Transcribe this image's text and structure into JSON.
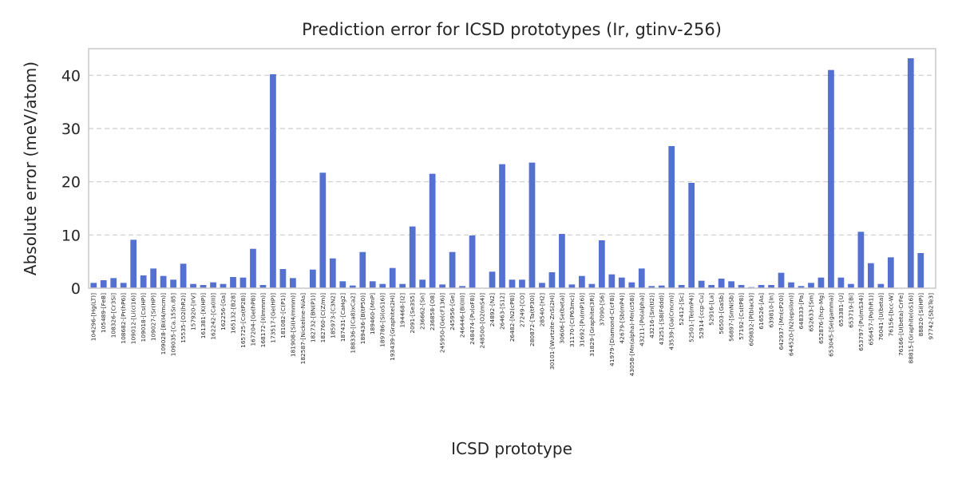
{
  "chart_data": {
    "type": "bar",
    "title": "Prediction error for ICSD prototypes (Ir, gtinv-256)",
    "xlabel": "ICSD prototype",
    "ylabel": "Absolute error (meV/atom)",
    "ylim": [
      0,
      45
    ],
    "yticks": [
      0,
      10,
      20,
      30,
      40
    ],
    "grid": "y-dashed",
    "bar_color": "#5470d0",
    "categories": [
      "104296-[Hg(LT)]",
      "105489-[FeB]",
      "108326-[Cr3Si]",
      "108682-[Pr(hP6)]",
      "109012-[Li(cI16)]",
      "109018-[Cs(HP)]",
      "109027-[Sr(HP)]",
      "109028-[Bi(I4/mcm)]",
      "109035-[Ca.15Sn.85]",
      "15535-[O2(hR2)]",
      "157920-[IrV]",
      "161381-[K(HP)]",
      "162242-[Ca(III)]",
      "162256-[Ga]",
      "165132-[B28]",
      "165725-[Co(tP28)]",
      "167204-[Ge(hP8)]",
      "168172-[I(Immm)]",
      "173517-[Ge(HP)]",
      "181082-[C(P1)]",
      "181908-[Si(I4/mmm)]",
      "182587-[Nickeline-NiAs]",
      "182732-[BN(P1)]",
      "182760-[C(Z/m)]",
      "185973-[C3N2]",
      "187431-[CaHg2]",
      "188336-[(Ca8)xCa2]",
      "189436-[B(tP50)]",
      "189460-[MnP]",
      "189786-[Si(oS16)]",
      "193439-[Graphite(2H)]",
      "194468-[I2]",
      "2091-[Se3S5]",
      "236662-[Sn]",
      "236858-[O8]",
      "245950-[Ge(cF136)]",
      "245956-[Ge]",
      "246446-[Bi(III)]",
      "248474-[Pu(oF8)]",
      "248500-[O2(mS4)]",
      "24892-[N2]",
      "26463-[S12]",
      "26482-[N2(cP8)]",
      "27249-[CO]",
      "280872-[Ta(tP30)]",
      "28540-[H2]",
      "30101-[Wurtzite-ZnS(2H)]",
      "30606-[Se(beta)]",
      "31170-[C(P63mc)]",
      "31692-[Pu(mP16)]",
      "31829-[Graphite(3R)]",
      "37090-[S6]",
      "41979-[Diamond-C(cF8)]",
      "42679-[Sb(mP4)]",
      "43058-[Mn(alpha)-Mn(cI58)]",
      "43211-[Po(alpha)]",
      "43216-[Sn(tI2)]",
      "43251-[S8(Fddd)]",
      "43539-[Ga(Cmcm)]",
      "52412-[Sc]",
      "52501-[Te(mP4)]",
      "52914-[ccp-Cu]",
      "52916-[La]",
      "56503-[GaSb]",
      "56897-[SmNiSb]",
      "57192-[Cs(tP8)]",
      "609832-[P(black)]",
      "616526-[As]",
      "639810-[In]",
      "642937-[Mn(cP20)]",
      "644520-[N2(epsilon)]",
      "648333-[Pa]",
      "652633-[Sm]",
      "652876-[hcp-Mg]",
      "653045-[Se(gamma)]",
      "653381-[U]",
      "653719-[Bi]",
      "653797-[Pu(mS34)]",
      "656457-[Po(hR1)]",
      "76041-[U(beta)]",
      "76156-[bcc-W]",
      "76166-[U(beta)-CrFe]",
      "88815-[Graphite(oS16)]",
      "88820-[Si(HP)]",
      "97742-[Sb2Te3]"
    ],
    "values": [
      1.0,
      1.5,
      1.9,
      1.0,
      9.1,
      2.4,
      3.7,
      2.3,
      1.6,
      4.6,
      0.8,
      0.6,
      1.1,
      0.8,
      2.1,
      2.0,
      7.4,
      0.6,
      40.2,
      3.6,
      1.9,
      0.0,
      3.5,
      21.7,
      5.6,
      1.3,
      0.5,
      6.8,
      1.3,
      0.8,
      3.8,
      0.8,
      11.6,
      1.6,
      21.5,
      0.7,
      6.8,
      0.4,
      9.9,
      0.0,
      3.1,
      23.3,
      1.6,
      1.6,
      23.6,
      1.0,
      3.0,
      10.2,
      0.7,
      2.3,
      0.8,
      9.0,
      2.6,
      2.0,
      1.1,
      3.7,
      0.4,
      0.5,
      26.7,
      0.6,
      19.8,
      1.4,
      0.6,
      1.8,
      1.3,
      0.6,
      0.2,
      0.6,
      0.6,
      2.9,
      1.1,
      0.4,
      1.0,
      2.0,
      41.0,
      2.0,
      0.8,
      10.6,
      4.7,
      0.8,
      5.8,
      0.0,
      43.2,
      6.6,
      0.0
    ]
  }
}
